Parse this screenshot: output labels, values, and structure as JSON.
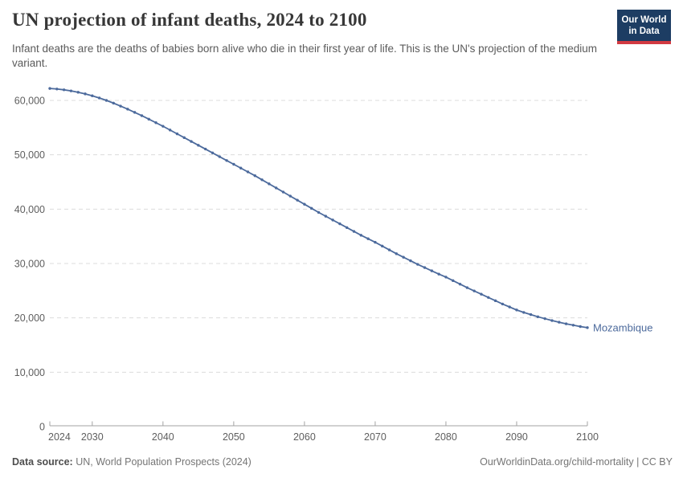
{
  "header": {
    "title": "UN projection of infant deaths, 2024 to 2100",
    "subtitle": "Infant deaths are the deaths of babies born alive who die in their first year of life. This is the UN's projection of the medium variant.",
    "logo": {
      "line1": "Our World",
      "line2": "in Data"
    }
  },
  "footer": {
    "data_source_label": "Data source:",
    "data_source_value": "UN, World Population Prospects (2024)",
    "attribution": "OurWorldinData.org/child-mortality | CC BY"
  },
  "colors": {
    "line": "#4c6a9c",
    "entity_label": "#4c6a9c",
    "gridline": "#dcdcdc",
    "axis": "#a3a3a3",
    "axis_text": "#5e5e5e",
    "title_text": "#373737",
    "subtitle_text": "#5b5b5b",
    "logo_bg": "#1d3d63",
    "logo_red": "#d23a42"
  },
  "chart_data": {
    "type": "line",
    "title": "UN projection of infant deaths, 2024 to 2100",
    "entity": "Mozambique",
    "legend_position": "end-of-line label",
    "grid": "dashed horizontal gridlines",
    "xlim": [
      2024,
      2100
    ],
    "ylim": [
      0,
      65000
    ],
    "xticks": [
      2024,
      2030,
      2040,
      2050,
      2060,
      2070,
      2080,
      2090,
      2100
    ],
    "yticks": [
      0,
      10000,
      20000,
      30000,
      40000,
      50000,
      60000
    ],
    "ytick_labels": [
      "0",
      "10,000",
      "20,000",
      "30,000",
      "40,000",
      "50,000",
      "60,000"
    ],
    "x": [
      2024,
      2025,
      2026,
      2027,
      2028,
      2029,
      2030,
      2031,
      2032,
      2033,
      2034,
      2035,
      2036,
      2037,
      2038,
      2039,
      2040,
      2041,
      2042,
      2043,
      2044,
      2045,
      2046,
      2047,
      2048,
      2049,
      2050,
      2051,
      2052,
      2053,
      2054,
      2055,
      2056,
      2057,
      2058,
      2059,
      2060,
      2061,
      2062,
      2063,
      2064,
      2065,
      2066,
      2067,
      2068,
      2069,
      2070,
      2071,
      2072,
      2073,
      2074,
      2075,
      2076,
      2077,
      2078,
      2079,
      2080,
      2081,
      2082,
      2083,
      2084,
      2085,
      2086,
      2087,
      2088,
      2089,
      2090,
      2091,
      2092,
      2093,
      2094,
      2095,
      2096,
      2097,
      2098,
      2099,
      2100
    ],
    "series": [
      {
        "name": "Mozambique",
        "values": [
          62200,
          62100,
          61950,
          61750,
          61500,
          61200,
          60850,
          60450,
          60000,
          59500,
          58950,
          58400,
          57800,
          57200,
          56550,
          55900,
          55250,
          54550,
          53850,
          53150,
          52450,
          51750,
          51050,
          50350,
          49650,
          48950,
          48250,
          47550,
          46850,
          46150,
          45400,
          44650,
          43900,
          43150,
          42400,
          41650,
          40900,
          40150,
          39400,
          38700,
          38000,
          37300,
          36600,
          35900,
          35200,
          34550,
          33900,
          33200,
          32500,
          31800,
          31150,
          30500,
          29850,
          29250,
          28650,
          28050,
          27500,
          26850,
          26200,
          25550,
          24950,
          24350,
          23750,
          23150,
          22550,
          22000,
          21450,
          21000,
          20600,
          20200,
          19850,
          19500,
          19200,
          18900,
          18650,
          18400,
          18200
        ]
      }
    ]
  }
}
